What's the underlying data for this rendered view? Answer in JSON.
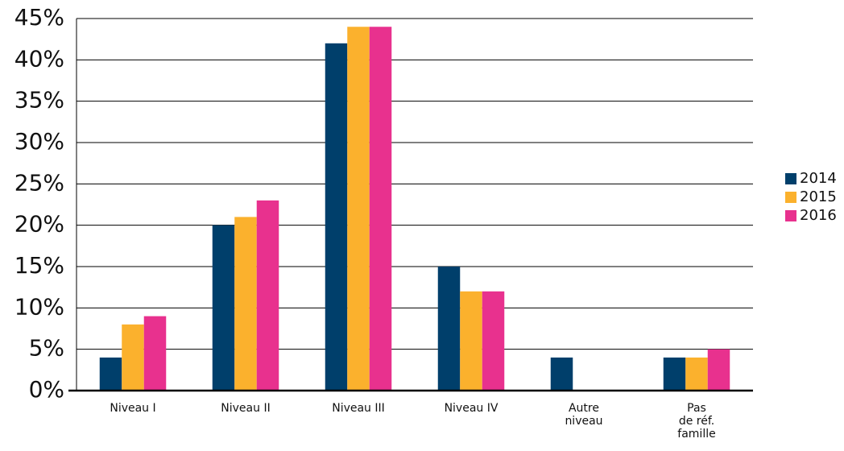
{
  "chart_data": {
    "type": "bar",
    "categories": [
      "Niveau I",
      "Niveau II",
      "Niveau III",
      "Niveau IV",
      "Autre\nniveau",
      "Pas\nde réf.\nfamille"
    ],
    "series": [
      {
        "name": "2014",
        "color": "#003f6b",
        "values": [
          4,
          20,
          42,
          15,
          4,
          4
        ]
      },
      {
        "name": "2015",
        "color": "#fbb12d",
        "values": [
          8,
          21,
          44,
          12,
          0,
          4
        ]
      },
      {
        "name": "2016",
        "color": "#e8318e",
        "values": [
          9,
          23,
          44,
          12,
          0,
          5
        ]
      }
    ],
    "ylim": [
      0,
      45
    ],
    "yticks": [
      {
        "value": 0,
        "label": "0%"
      },
      {
        "value": 5,
        "label": "5%"
      },
      {
        "value": 10,
        "label": "10%"
      },
      {
        "value": 15,
        "label": "15%"
      },
      {
        "value": 20,
        "label": "20%"
      },
      {
        "value": 25,
        "label": "25%"
      },
      {
        "value": 30,
        "label": "30%"
      },
      {
        "value": 35,
        "label": "35%"
      },
      {
        "value": 40,
        "label": "40%"
      },
      {
        "value": 45,
        "label": "45%"
      }
    ],
    "grid": true,
    "legend": "right"
  }
}
